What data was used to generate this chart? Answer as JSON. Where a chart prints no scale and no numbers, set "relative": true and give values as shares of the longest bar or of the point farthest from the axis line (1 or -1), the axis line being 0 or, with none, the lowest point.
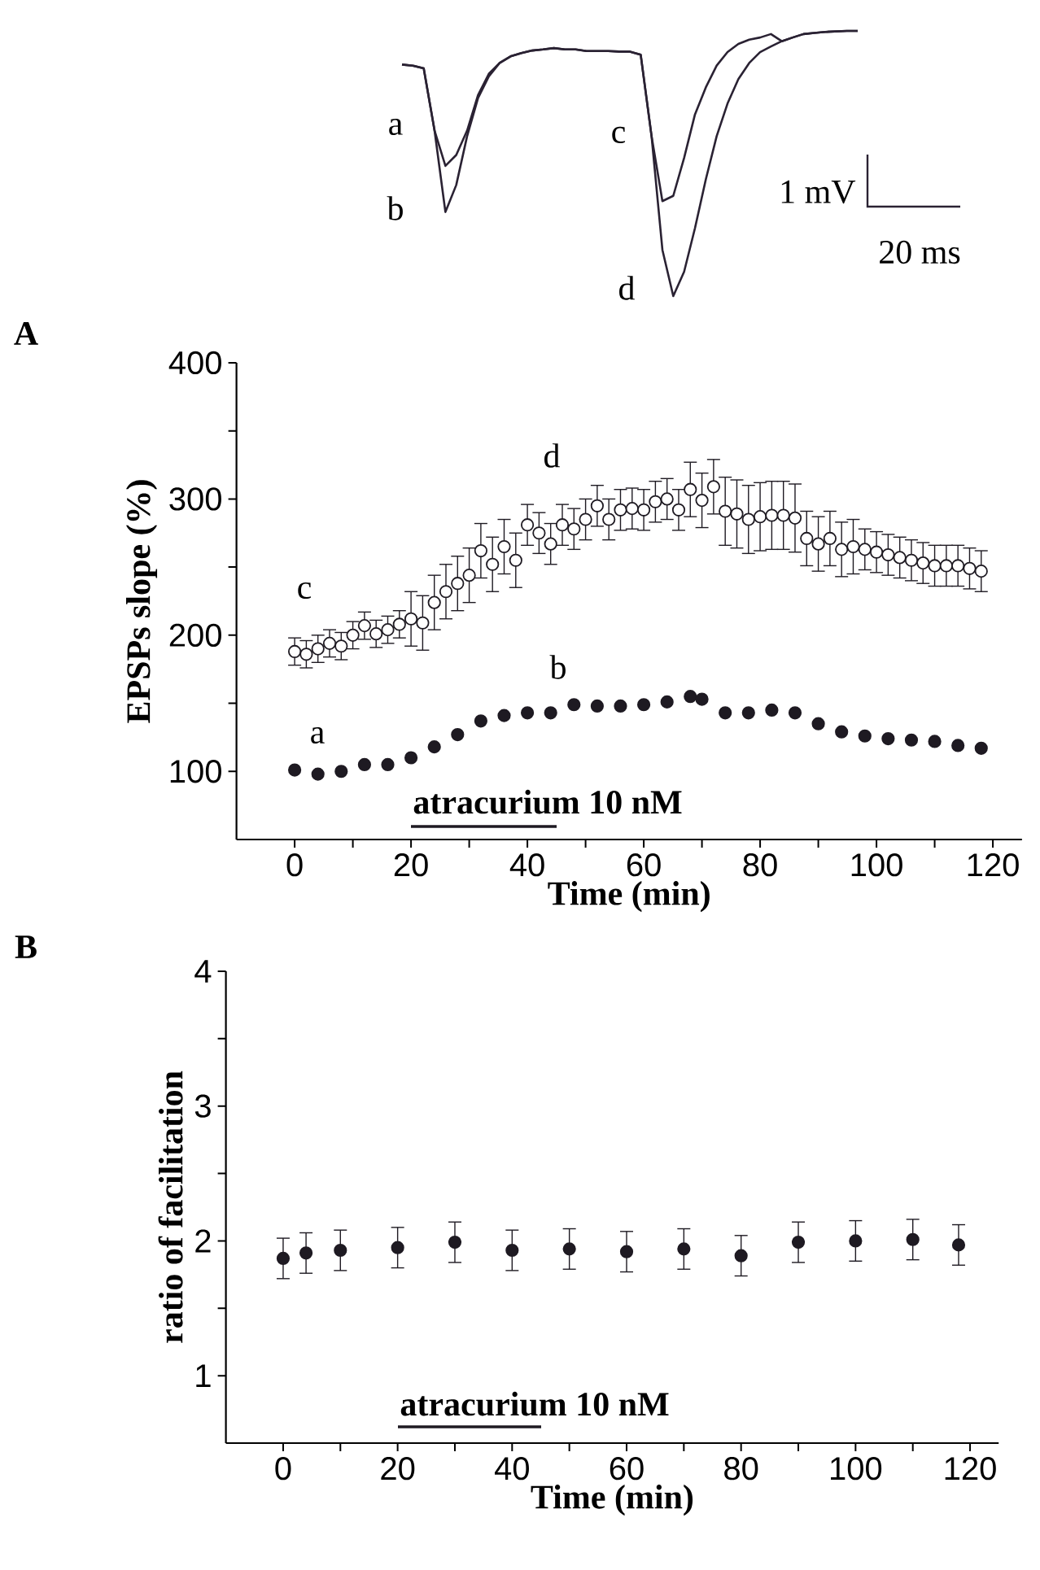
{
  "chart_data": [
    {
      "type": "line",
      "relative": true,
      "categories": [
        null,
        null,
        null,
        null,
        null,
        null,
        null,
        null,
        null,
        null,
        null,
        null,
        null,
        null,
        null,
        null,
        null,
        null,
        null,
        null,
        null,
        null,
        null,
        null,
        null,
        null,
        null,
        null,
        null,
        null,
        null,
        null,
        null,
        null,
        null,
        null,
        null,
        null,
        null,
        null,
        null,
        null,
        null
      ],
      "series": [
        {
          "color": "#2a2233",
          "values": [
            0.873,
            0.869,
            0.859,
            0.624,
            0.491,
            0.532,
            0.624,
            0.757,
            0.838,
            0.879,
            0.904,
            0.916,
            0.926,
            0.93,
            0.935,
            0.93,
            0.93,
            0.924,
            0.924,
            0.924,
            0.922,
            0.922,
            0.91,
            0.603,
            0.358,
            0.378,
            0.521,
            0.685,
            0.787,
            0.869,
            0.92,
            0.951,
            0.967,
            0.975,
            0.988,
            0.961,
            0.975,
            0.988,
            0.992,
            0.996,
            0.998,
            1,
            1
          ]
        },
        {
          "color": "#2a2233",
          "values": [
            0.873,
            0.869,
            0.859,
            0.624,
            0.317,
            0.419,
            0.603,
            0.746,
            0.828,
            0.879,
            0.904,
            0.916,
            0.926,
            0.93,
            0.935,
            0.93,
            0.93,
            0.924,
            0.924,
            0.924,
            0.922,
            0.922,
            0.91,
            0.603,
            0.174,
            0,
            0.092,
            0.256,
            0.44,
            0.603,
            0.726,
            0.818,
            0.879,
            0.92,
            0.941,
            0.961,
            0.975,
            0.988,
            0.992,
            0.996,
            0.998,
            1,
            1
          ]
        }
      ],
      "annotations": [
        "a",
        "b",
        "c",
        "d",
        "1 mV",
        "20 ms"
      ]
    },
    {
      "type": "scatter",
      "xlabel": "Time (min)",
      "ylabel": "EPSPs slope (%)",
      "xlim": [
        -10,
        125
      ],
      "ylim": [
        50,
        400
      ],
      "xticks": [
        0,
        {
          "value": 10,
          "label": null
        },
        20,
        {
          "value": 30,
          "label": null
        },
        40,
        {
          "value": 50,
          "label": null
        },
        60,
        {
          "value": 70,
          "label": null
        },
        80,
        {
          "value": 90,
          "label": null
        },
        100,
        {
          "value": 110,
          "label": null
        },
        120
      ],
      "yticks": [
        100,
        {
          "value": 150,
          "label": null
        },
        200,
        {
          "value": 250,
          "label": null
        },
        300,
        {
          "value": 350,
          "label": null
        },
        400
      ],
      "marker": "circle",
      "series": [
        {
          "color": "#1e1a22",
          "x": [
            0,
            2,
            4,
            6,
            8,
            10,
            12,
            14,
            16,
            18,
            20,
            22,
            24,
            26,
            28,
            30,
            32,
            34,
            36,
            38,
            40,
            42,
            44,
            46,
            48,
            50,
            52,
            54,
            56,
            58,
            60,
            62,
            64,
            66,
            68,
            70,
            72,
            74,
            76,
            78,
            80,
            82,
            84,
            86,
            88,
            90,
            92,
            94,
            96,
            98,
            100,
            102,
            104,
            106,
            108,
            110,
            112,
            114,
            116,
            118
          ],
          "values": [
            188,
            186,
            190,
            194,
            192,
            200,
            207,
            201,
            204,
            208,
            212,
            209,
            224,
            232,
            238,
            244,
            262,
            252,
            265,
            255,
            281,
            275,
            267,
            281,
            278,
            285,
            295,
            285,
            292,
            293,
            292,
            298,
            300,
            292,
            307,
            299,
            309,
            291,
            289,
            285,
            287,
            288,
            288,
            286,
            271,
            267,
            271,
            263,
            265,
            263,
            261,
            259,
            257,
            255,
            253,
            251,
            251,
            251,
            249,
            247
          ],
          "errors": [
            10,
            10,
            10,
            10,
            10,
            10,
            10,
            10,
            10,
            10,
            20,
            20,
            20,
            20,
            20,
            20,
            20,
            20,
            20,
            20,
            15,
            15,
            15,
            15,
            15,
            15,
            15,
            15,
            15,
            15,
            15,
            15,
            15,
            15,
            20,
            20,
            20,
            25,
            25,
            25,
            25,
            25,
            25,
            25,
            20,
            20,
            20,
            20,
            20,
            15,
            15,
            15,
            15,
            15,
            15,
            15,
            15,
            15,
            15,
            15
          ]
        },
        {
          "color": "#1e1a22",
          "x": [
            0,
            4,
            8,
            12,
            16,
            20,
            24,
            28,
            32,
            36,
            40,
            44,
            48,
            52,
            56,
            60,
            64,
            68,
            70,
            74,
            78,
            82,
            86,
            90,
            94,
            98,
            102,
            106,
            110,
            114,
            118
          ],
          "values": [
            101,
            98,
            100,
            105,
            105,
            110,
            118,
            127,
            137,
            141,
            143,
            143,
            149,
            148,
            148,
            149,
            151,
            155,
            153,
            143,
            143,
            145,
            143,
            135,
            129,
            126,
            124,
            123,
            122,
            119,
            117
          ]
        }
      ],
      "annotations": [
        "a",
        "b",
        "c",
        "d",
        "A",
        "atracurium 10 nM"
      ]
    },
    {
      "type": "scatter",
      "xlabel": "Time (min)",
      "ylabel": "ratio of facilitation",
      "xlim": [
        -10,
        125
      ],
      "ylim": [
        0.5,
        4
      ],
      "xticks": [
        0,
        {
          "value": 10,
          "label": null
        },
        20,
        {
          "value": 30,
          "label": null
        },
        40,
        {
          "value": 50,
          "label": null
        },
        60,
        {
          "value": 70,
          "label": null
        },
        80,
        {
          "value": 90,
          "label": null
        },
        100,
        {
          "value": 110,
          "label": null
        },
        120
      ],
      "yticks": [
        1,
        {
          "value": 1.5,
          "label": null
        },
        2,
        {
          "value": 2.5,
          "label": null
        },
        3,
        {
          "value": 3.5,
          "label": null
        },
        4
      ],
      "marker": "circle",
      "series": [
        {
          "color": "#1e1a22",
          "x": [
            0,
            4,
            10,
            20,
            30,
            40,
            50,
            60,
            70,
            80,
            90,
            100,
            110,
            118
          ],
          "values": [
            1.87,
            1.91,
            1.93,
            1.95,
            1.99,
            1.93,
            1.94,
            1.92,
            1.94,
            1.89,
            1.99,
            2.0,
            2.01,
            1.97
          ],
          "errors": [
            0.15,
            0.15,
            0.15,
            0.15,
            0.15,
            0.15,
            0.15,
            0.15,
            0.15,
            0.15,
            0.15,
            0.15,
            0.15,
            0.15
          ]
        }
      ],
      "annotations": [
        "B",
        "atracurium 10 nM"
      ]
    }
  ]
}
